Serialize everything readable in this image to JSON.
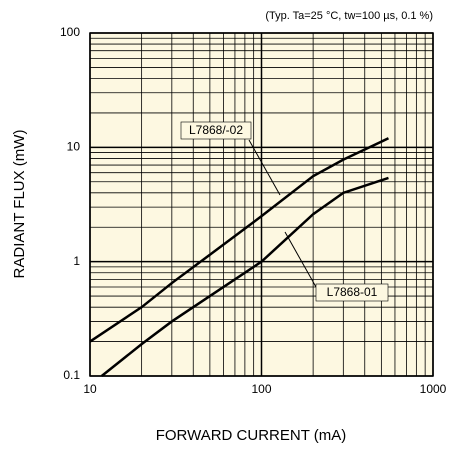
{
  "chart_data": {
    "type": "line",
    "title": "(Typ. Ta=25 °C, tw=100 µs, 0.1 %)",
    "x_label": "FORWARD CURRENT (mA)",
    "y_label": "RADIANT FLUX (mW)",
    "log_x": true,
    "log_y": true,
    "grid": true,
    "minor_grid": true,
    "background": "#fdf8e1",
    "xlim": [
      10,
      1000
    ],
    "xticks": [
      10,
      100,
      1000
    ],
    "ylim": [
      0.1,
      100
    ],
    "yticks": [
      0.1,
      1,
      10,
      100
    ],
    "series": [
      {
        "name": "L7868/-02",
        "color": "#000000",
        "x": [
          10,
          20,
          30,
          50,
          100,
          200,
          300,
          550
        ],
        "values": [
          0.2,
          0.4,
          0.65,
          1.15,
          2.5,
          5.6,
          7.8,
          12
        ]
      },
      {
        "name": "L7868-01",
        "color": "#000000",
        "x": [
          11.7,
          20,
          30,
          50,
          100,
          200,
          300,
          550
        ],
        "values": [
          0.1,
          0.19,
          0.3,
          0.5,
          1.0,
          2.6,
          4.0,
          5.4
        ]
      }
    ]
  }
}
